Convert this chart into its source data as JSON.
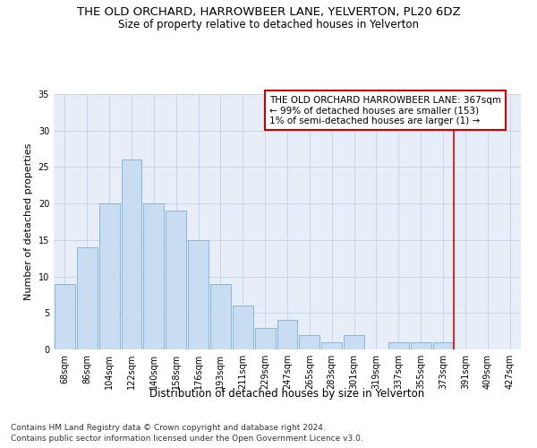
{
  "title": "THE OLD ORCHARD, HARROWBEER LANE, YELVERTON, PL20 6DZ",
  "subtitle": "Size of property relative to detached houses in Yelverton",
  "xlabel": "Distribution of detached houses by size in Yelverton",
  "ylabel": "Number of detached properties",
  "categories": [
    "68sqm",
    "86sqm",
    "104sqm",
    "122sqm",
    "140sqm",
    "158sqm",
    "176sqm",
    "193sqm",
    "211sqm",
    "229sqm",
    "247sqm",
    "265sqm",
    "283sqm",
    "301sqm",
    "319sqm",
    "337sqm",
    "355sqm",
    "373sqm",
    "391sqm",
    "409sqm",
    "427sqm"
  ],
  "values": [
    9,
    14,
    20,
    26,
    20,
    19,
    15,
    9,
    6,
    3,
    4,
    2,
    1,
    2,
    0,
    1,
    1,
    1,
    0,
    0,
    0
  ],
  "bar_color": "#c8ddf2",
  "bar_edge_color": "#7aafd4",
  "bar_edge_width": 0.6,
  "ylim": [
    0,
    35
  ],
  "yticks": [
    0,
    5,
    10,
    15,
    20,
    25,
    30,
    35
  ],
  "grid_color": "#c8d4e8",
  "bg_color": "#e8eef8",
  "red_line_index": 17.5,
  "annotation_text": "THE OLD ORCHARD HARROWBEER LANE: 367sqm\n← 99% of detached houses are smaller (153)\n1% of semi-detached houses are larger (1) →",
  "annotation_box_facecolor": "#ffffff",
  "annotation_box_edgecolor": "#cc0000",
  "red_line_color": "#dd0000",
  "footer_line1": "Contains HM Land Registry data © Crown copyright and database right 2024.",
  "footer_line2": "Contains public sector information licensed under the Open Government Licence v3.0.",
  "title_fontsize": 9.5,
  "subtitle_fontsize": 8.5,
  "xlabel_fontsize": 8.5,
  "ylabel_fontsize": 8,
  "tick_fontsize": 7,
  "annotation_fontsize": 7.5,
  "footer_fontsize": 6.5
}
